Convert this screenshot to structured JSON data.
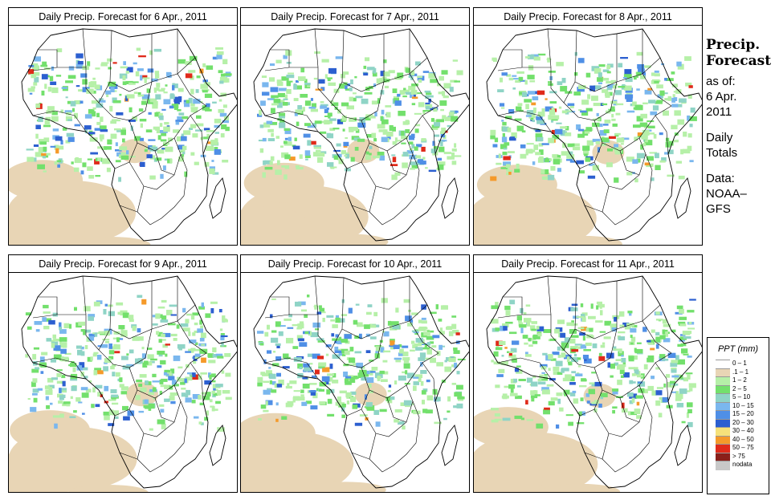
{
  "panels": [
    {
      "title": "Daily Precip. Forecast for  6 Apr., 2011",
      "seed": 11
    },
    {
      "title": "Daily Precip. Forecast for  7 Apr., 2011",
      "seed": 23
    },
    {
      "title": "Daily Precip. Forecast for  8 Apr., 2011",
      "seed": 37
    },
    {
      "title": "Daily Precip. Forecast for  9 Apr., 2011",
      "seed": 41
    },
    {
      "title": "Daily Precip. Forecast for  10 Apr., 2011",
      "seed": 53
    },
    {
      "title": "Daily Precip. Forecast for  11 Apr., 2011",
      "seed": 67
    }
  ],
  "side": {
    "heading_line1": "Precip.",
    "heading_line2": "Forecast",
    "as_of": "as of:",
    "date_line1": "6 Apr.",
    "date_line2": "2011",
    "daily_line1": "Daily",
    "daily_line2": "Totals",
    "data_line1": "Data:",
    "data_line2": "NOAA–",
    "data_line3": "GFS"
  },
  "legend": {
    "title": "PPT (mm)",
    "items": [
      {
        "label": "0 – 1",
        "color": "#ffffff"
      },
      {
        "label": ".1 – 1",
        "color": "#e8d5b5"
      },
      {
        "label": "1 – 2",
        "color": "#b6f0a8"
      },
      {
        "label": "2 – 5",
        "color": "#73e06c"
      },
      {
        "label": "5 – 10",
        "color": "#8fd4c6"
      },
      {
        "label": "10 – 15",
        "color": "#7ab7ee"
      },
      {
        "label": "15 – 20",
        "color": "#4f8fe6"
      },
      {
        "label": "20 – 30",
        "color": "#2c5fd0"
      },
      {
        "label": "30 – 40",
        "color": "#f6e27a"
      },
      {
        "label": "40 – 50",
        "color": "#f59a2a"
      },
      {
        "label": "50 – 75",
        "color": "#e02a1a"
      },
      {
        "label": "> 75",
        "color": "#8a1f1a"
      },
      {
        "label": "nodata",
        "color": "#c8c8c8"
      }
    ]
  }
}
